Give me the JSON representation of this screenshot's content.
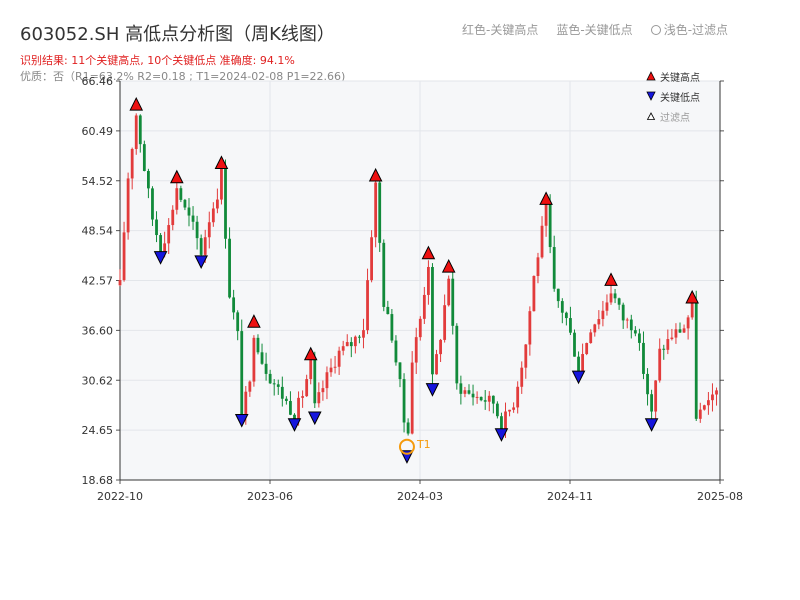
{
  "header": {
    "title": "603052.SH 高低点分析图（周K线图）",
    "result_line": "识别结果: 11个关键高点, 10个关键低点   准确度: 94.1%",
    "info_line": "优质：否（R1=63.2%  R2=0.18 ; T1=2024-02-08 P1=22.66)"
  },
  "top_legend": {
    "high": "红色-关键高点",
    "low": "蓝色-关键低点",
    "filtered": "浅色-过滤点"
  },
  "chart_legend": {
    "high": "关键高点",
    "low": "关键低点",
    "filtered": "过滤点"
  },
  "colors": {
    "up": "#e23b3b",
    "down": "#118a3a",
    "high_marker": "#ee1111",
    "low_marker": "#1616dd",
    "t1_ring": "#f59a0c",
    "plot_bg": "#f6f7f9",
    "grid": "#e3e6ea"
  },
  "chart_data": {
    "type": "candlestick",
    "y_ticks": [
      "66.46",
      "60.49",
      "54.52",
      "48.54",
      "42.57",
      "36.60",
      "30.62",
      "24.65",
      "18.68"
    ],
    "x_ticks": [
      "2022-10",
      "2023-06",
      "2024-03",
      "2024-11",
      "2025-08"
    ],
    "ylim": [
      18.68,
      66.46
    ],
    "xlim": [
      "2022-10-01",
      "2025-08-01"
    ],
    "grid": true,
    "legend_position": "top-right",
    "t1_label": "T1",
    "t1_point": {
      "date": "2024-02-08",
      "price": 22.66
    },
    "key_highs": [
      {
        "date": "2022-10-29",
        "price": 62.5
      },
      {
        "date": "2023-01-07",
        "price": 53.8
      },
      {
        "date": "2023-03-25",
        "price": 55.5
      },
      {
        "date": "2023-05-20",
        "price": 36.5
      },
      {
        "date": "2023-08-26",
        "price": 32.6
      },
      {
        "date": "2023-12-16",
        "price": 54.0
      },
      {
        "date": "2024-03-16",
        "price": 44.7
      },
      {
        "date": "2024-04-20",
        "price": 43.1
      },
      {
        "date": "2024-10-05",
        "price": 51.2
      },
      {
        "date": "2025-01-25",
        "price": 41.5
      },
      {
        "date": "2025-06-14",
        "price": 39.4
      }
    ],
    "key_lows": [
      {
        "date": "2022-12-10",
        "price": 46.5
      },
      {
        "date": "2023-02-18",
        "price": 46.0
      },
      {
        "date": "2023-04-29",
        "price": 27.0
      },
      {
        "date": "2023-07-29",
        "price": 26.5
      },
      {
        "date": "2023-09-02",
        "price": 27.3
      },
      {
        "date": "2024-02-08",
        "price": 22.66
      },
      {
        "date": "2024-03-23",
        "price": 30.7
      },
      {
        "date": "2024-07-20",
        "price": 25.3
      },
      {
        "date": "2024-11-30",
        "price": 32.2
      },
      {
        "date": "2025-04-05",
        "price": 26.5
      }
    ],
    "path": [
      [
        "2022-10-01",
        42
      ],
      [
        "2022-10-15",
        55
      ],
      [
        "2022-10-29",
        62.5
      ],
      [
        "2022-11-12",
        56
      ],
      [
        "2022-11-26",
        50
      ],
      [
        "2022-12-10",
        46.5
      ],
      [
        "2022-12-24",
        49
      ],
      [
        "2023-01-07",
        53.8
      ],
      [
        "2023-01-21",
        51
      ],
      [
        "2023-02-04",
        49
      ],
      [
        "2023-02-18",
        46
      ],
      [
        "2023-03-04",
        50
      ],
      [
        "2023-03-18",
        53
      ],
      [
        "2023-03-25",
        55.5
      ],
      [
        "2023-04-08",
        41
      ],
      [
        "2023-04-22",
        36
      ],
      [
        "2023-04-29",
        27
      ],
      [
        "2023-05-13",
        30
      ],
      [
        "2023-05-20",
        36.5
      ],
      [
        "2023-06-03",
        33
      ],
      [
        "2023-06-17",
        31
      ],
      [
        "2023-07-01",
        29.5
      ],
      [
        "2023-07-15",
        28
      ],
      [
        "2023-07-29",
        26.5
      ],
      [
        "2023-08-12",
        29
      ],
      [
        "2023-08-26",
        32.6
      ],
      [
        "2023-09-02",
        27.3
      ],
      [
        "2023-09-23",
        31
      ],
      [
        "2023-10-14",
        34
      ],
      [
        "2023-11-04",
        35
      ],
      [
        "2023-11-25",
        37
      ],
      [
        "2023-12-16",
        54
      ],
      [
        "2023-12-30",
        40
      ],
      [
        "2024-01-13",
        36
      ],
      [
        "2024-01-27",
        30
      ],
      [
        "2024-02-08",
        22.66
      ],
      [
        "2024-02-17",
        33
      ],
      [
        "2024-03-02",
        38
      ],
      [
        "2024-03-16",
        44.7
      ],
      [
        "2024-03-23",
        30.7
      ],
      [
        "2024-04-06",
        36
      ],
      [
        "2024-04-20",
        43.1
      ],
      [
        "2024-05-04",
        30
      ],
      [
        "2024-05-25",
        29
      ],
      [
        "2024-06-15",
        28.5
      ],
      [
        "2024-07-06",
        28
      ],
      [
        "2024-07-20",
        25.3
      ],
      [
        "2024-08-10",
        28
      ],
      [
        "2024-08-31",
        35
      ],
      [
        "2024-09-14",
        43
      ],
      [
        "2024-10-05",
        51.2
      ],
      [
        "2024-10-19",
        41
      ],
      [
        "2024-11-09",
        38
      ],
      [
        "2024-11-30",
        32.2
      ],
      [
        "2024-12-21",
        37
      ],
      [
        "2025-01-11",
        39
      ],
      [
        "2025-01-25",
        41.5
      ],
      [
        "2025-02-15",
        38
      ],
      [
        "2025-03-08",
        37
      ],
      [
        "2025-04-05",
        26.5
      ],
      [
        "2025-04-19",
        34
      ],
      [
        "2025-05-10",
        36
      ],
      [
        "2025-05-31",
        37
      ],
      [
        "2025-06-14",
        39.4
      ],
      [
        "2025-06-21",
        26.5
      ],
      [
        "2025-07-12",
        27.5
      ],
      [
        "2025-07-26",
        30
      ],
      [
        "2025-08-01",
        31
      ]
    ],
    "gap": {
      "from": "2025-06-14",
      "to": "2025-06-21"
    }
  }
}
